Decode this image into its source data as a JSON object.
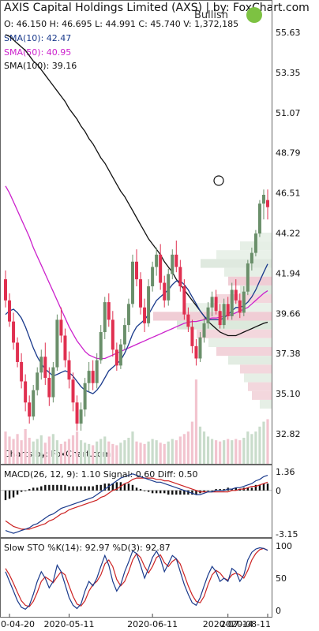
{
  "header": {
    "title": "AXIS Capital Holdings Limited (AXS) | by: FoxChart.com",
    "ohlc": "O: 46.150 H: 46.695 L: 44.991 C: 45.740 V: 1,372,185",
    "sentiment": "Bullish",
    "sentiment_color": "#7dc242"
  },
  "legend": {
    "sma10": "SMA(10): 42.47",
    "sma50": "SMA(50): 40.95",
    "sma100": "SMA(100): 39.16"
  },
  "credit": "Charts by: FoxChart.com",
  "colors": {
    "up": "#6a8f6a",
    "down": "#e03050",
    "sma10": "#1a3a8c",
    "sma50": "#cc22cc",
    "sma100": "#111111",
    "macd": "#1a3a8c",
    "signal": "#cc2222"
  },
  "chart_data": [
    {
      "type": "candlestick",
      "title": "AXIS Capital Holdings Limited (AXS) | by: FoxChart.com",
      "y_ticks": [
        "55.63",
        "53.35",
        "51.07",
        "48.79",
        "46.51",
        "44.22",
        "41.94",
        "39.66",
        "37.38",
        "35.10",
        "32.82"
      ],
      "ylim": [
        32.82,
        55.63
      ],
      "x_ticks": [
        "2020-04-20",
        "2020-05-11",
        "2020-06-11",
        "2020-07-14",
        "2020-08-11"
      ],
      "candles": [
        [
          41.6,
          42.1,
          40.0,
          40.4
        ],
        [
          40.4,
          40.8,
          38.9,
          39.2
        ],
        [
          39.2,
          39.7,
          37.6,
          38.0
        ],
        [
          38.0,
          38.3,
          36.6,
          36.9
        ],
        [
          36.9,
          37.4,
          35.4,
          35.8
        ],
        [
          35.8,
          36.2,
          34.1,
          34.6
        ],
        [
          34.6,
          35.0,
          33.4,
          33.8
        ],
        [
          33.8,
          35.6,
          33.6,
          35.3
        ],
        [
          35.3,
          36.6,
          35.0,
          36.3
        ],
        [
          36.3,
          37.6,
          35.9,
          37.2
        ],
        [
          37.2,
          38.0,
          35.6,
          36.0
        ],
        [
          36.0,
          36.6,
          34.4,
          34.9
        ],
        [
          34.9,
          36.9,
          34.6,
          36.6
        ],
        [
          36.6,
          39.6,
          36.4,
          39.3
        ],
        [
          39.3,
          40.0,
          38.0,
          38.4
        ],
        [
          38.4,
          38.8,
          36.6,
          37.0
        ],
        [
          37.0,
          37.5,
          35.4,
          35.9
        ],
        [
          35.9,
          36.3,
          34.1,
          34.6
        ],
        [
          34.6,
          35.0,
          33.0,
          33.4
        ],
        [
          33.4,
          34.6,
          33.0,
          34.2
        ],
        [
          34.2,
          36.0,
          33.8,
          35.7
        ],
        [
          35.7,
          36.9,
          35.2,
          36.4
        ],
        [
          36.4,
          37.0,
          35.3,
          35.7
        ],
        [
          35.7,
          37.4,
          35.4,
          37.0
        ],
        [
          37.0,
          39.0,
          36.8,
          38.6
        ],
        [
          38.6,
          40.6,
          38.2,
          40.3
        ],
        [
          40.3,
          40.8,
          38.9,
          39.3
        ],
        [
          39.3,
          39.8,
          37.2,
          37.6
        ],
        [
          37.6,
          38.0,
          36.4,
          36.7
        ],
        [
          36.7,
          38.2,
          36.5,
          37.9
        ],
        [
          37.9,
          39.4,
          37.6,
          39.0
        ],
        [
          39.0,
          40.5,
          38.6,
          40.2
        ],
        [
          40.2,
          43.0,
          40.0,
          42.6
        ],
        [
          42.6,
          43.3,
          41.2,
          41.6
        ],
        [
          41.6,
          42.0,
          39.6,
          40.0
        ],
        [
          40.0,
          40.5,
          38.6,
          39.1
        ],
        [
          39.1,
          41.6,
          38.9,
          41.2
        ],
        [
          41.2,
          42.6,
          40.9,
          42.3
        ],
        [
          42.3,
          43.4,
          41.8,
          43.0
        ],
        [
          43.0,
          43.6,
          41.0,
          41.4
        ],
        [
          41.4,
          41.8,
          40.0,
          40.4
        ],
        [
          40.4,
          42.2,
          40.1,
          41.9
        ],
        [
          41.9,
          43.3,
          41.6,
          43.0
        ],
        [
          43.0,
          43.8,
          42.0,
          42.3
        ],
        [
          42.3,
          42.7,
          40.9,
          41.2
        ],
        [
          41.2,
          41.6,
          39.3,
          39.6
        ],
        [
          39.6,
          40.0,
          38.6,
          38.9
        ],
        [
          38.9,
          39.3,
          37.4,
          37.8
        ],
        [
          37.8,
          38.2,
          36.7,
          37.1
        ],
        [
          37.1,
          38.6,
          36.9,
          38.3
        ],
        [
          38.3,
          39.4,
          38.0,
          39.1
        ],
        [
          39.1,
          40.3,
          38.8,
          40.0
        ],
        [
          40.0,
          40.9,
          39.5,
          40.6
        ],
        [
          40.6,
          41.0,
          39.6,
          39.8
        ],
        [
          39.8,
          40.2,
          38.8,
          39.0
        ],
        [
          39.0,
          40.5,
          38.8,
          40.2
        ],
        [
          40.2,
          40.6,
          39.3,
          39.5
        ],
        [
          39.5,
          41.4,
          39.3,
          41.0
        ],
        [
          41.0,
          41.6,
          40.2,
          40.4
        ],
        [
          40.4,
          40.8,
          39.4,
          39.7
        ],
        [
          39.7,
          41.2,
          39.5,
          40.9
        ],
        [
          40.9,
          42.7,
          40.7,
          42.5
        ],
        [
          42.5,
          43.4,
          42.1,
          43.1
        ],
        [
          43.1,
          44.4,
          42.9,
          44.2
        ],
        [
          44.2,
          46.1,
          44.0,
          45.9
        ],
        [
          45.9,
          46.7,
          45.0,
          46.4
        ],
        [
          46.1,
          46.7,
          45.0,
          45.7
        ]
      ],
      "sma10": [
        39.6,
        39.8,
        39.9,
        39.7,
        39.4,
        38.9,
        38.3,
        37.7,
        37.2,
        36.8,
        36.5,
        36.3,
        36.1,
        36.2,
        36.3,
        36.4,
        36.3,
        36.1,
        35.8,
        35.5,
        35.3,
        35.2,
        35.1,
        35.3,
        35.6,
        36.0,
        36.4,
        36.6,
        36.8,
        37.0,
        37.4,
        37.9,
        38.5,
        38.9,
        39.1,
        39.3,
        39.6,
        40.0,
        40.4,
        40.6,
        40.8,
        41.0,
        41.3,
        41.5,
        41.5,
        41.3,
        41.0,
        40.6,
        40.2,
        39.8,
        39.5,
        39.3,
        39.3,
        39.3,
        39.3,
        39.4,
        39.6,
        39.8,
        40.0,
        40.0,
        40.1,
        40.3,
        40.6,
        41.0,
        41.5,
        42.0,
        42.47
      ],
      "sma50": [
        46.9,
        46.5,
        46.0,
        45.5,
        45.0,
        44.5,
        44.0,
        43.4,
        42.9,
        42.4,
        41.9,
        41.4,
        40.9,
        40.4,
        39.9,
        39.4,
        38.9,
        38.5,
        38.1,
        37.8,
        37.5,
        37.3,
        37.2,
        37.1,
        37.1,
        37.1,
        37.2,
        37.3,
        37.4,
        37.5,
        37.6,
        37.7,
        37.8,
        37.9,
        38.0,
        38.1,
        38.2,
        38.3,
        38.4,
        38.5,
        38.6,
        38.7,
        38.8,
        38.9,
        39.0,
        39.1,
        39.15,
        39.2,
        39.2,
        39.25,
        39.3,
        39.35,
        39.4,
        39.4,
        39.45,
        39.5,
        39.55,
        39.6,
        39.7,
        39.8,
        39.9,
        40.0,
        40.2,
        40.4,
        40.6,
        40.8,
        40.95
      ],
      "sma100": [
        55.5,
        55.4,
        55.2,
        55.0,
        54.8,
        54.6,
        54.3,
        54.0,
        53.8,
        53.5,
        53.2,
        52.9,
        52.6,
        52.3,
        52.0,
        51.7,
        51.3,
        51.0,
        50.7,
        50.3,
        50.0,
        49.6,
        49.3,
        48.9,
        48.5,
        48.2,
        47.8,
        47.4,
        47.0,
        46.6,
        46.3,
        45.9,
        45.5,
        45.1,
        44.7,
        44.3,
        43.9,
        43.6,
        43.3,
        43.0,
        42.6,
        42.3,
        42.0,
        41.6,
        41.3,
        41.0,
        40.7,
        40.4,
        40.1,
        39.8,
        39.5,
        39.2,
        39.0,
        38.8,
        38.6,
        38.5,
        38.4,
        38.4,
        38.4,
        38.5,
        38.6,
        38.7,
        38.8,
        38.9,
        39.0,
        39.1,
        39.16
      ],
      "volume": [
        2.6,
        2.2,
        2.0,
        2.4,
        1.9,
        2.8,
        2.1,
        1.8,
        2.0,
        2.3,
        1.7,
        2.2,
        2.4,
        1.9,
        1.6,
        1.8,
        2.0,
        2.3,
        2.6,
        1.9,
        1.7,
        1.6,
        1.5,
        1.8,
        2.0,
        2.2,
        1.8,
        1.6,
        1.5,
        1.7,
        1.9,
        2.1,
        2.6,
        1.8,
        1.7,
        1.6,
        1.8,
        2.0,
        1.9,
        1.7,
        1.6,
        1.8,
        2.0,
        1.9,
        2.2,
        2.4,
        2.6,
        3.4,
        6.8,
        3.0,
        2.6,
        2.2,
        2.0,
        1.9,
        1.8,
        1.9,
        2.0,
        1.9,
        2.0,
        1.9,
        2.1,
        2.6,
        2.4,
        2.6,
        3.0,
        3.4,
        3.6
      ]
    },
    {
      "type": "line",
      "title": "MACD(26, 12, 9): 1.10 Signal: 0.60 Diff: 0.50",
      "y_ticks": [
        "1.36",
        "0",
        "-3.15"
      ],
      "ylim": [
        -3.15,
        1.36
      ],
      "macd": [
        -2.9,
        -3.0,
        -3.1,
        -3.0,
        -2.9,
        -2.8,
        -2.7,
        -2.5,
        -2.4,
        -2.2,
        -2.0,
        -1.8,
        -1.7,
        -1.5,
        -1.3,
        -1.2,
        -1.1,
        -1.0,
        -0.9,
        -0.8,
        -0.7,
        -0.6,
        -0.5,
        -0.3,
        -0.1,
        0.1,
        0.3,
        0.5,
        0.7,
        0.9,
        1.0,
        1.1,
        1.2,
        1.1,
        1.0,
        0.9,
        0.8,
        0.7,
        0.6,
        0.6,
        0.5,
        0.4,
        0.3,
        0.2,
        0.1,
        0.0,
        -0.1,
        -0.2,
        -0.3,
        -0.3,
        -0.2,
        -0.1,
        -0.1,
        0.0,
        0.0,
        0.0,
        0.1,
        0.1,
        0.2,
        0.2,
        0.3,
        0.4,
        0.5,
        0.7,
        0.8,
        1.0,
        1.1
      ],
      "signal": [
        -2.2,
        -2.4,
        -2.6,
        -2.7,
        -2.8,
        -2.8,
        -2.8,
        -2.7,
        -2.6,
        -2.5,
        -2.4,
        -2.2,
        -2.1,
        -1.9,
        -1.7,
        -1.6,
        -1.4,
        -1.3,
        -1.2,
        -1.1,
        -1.0,
        -0.9,
        -0.8,
        -0.7,
        -0.5,
        -0.4,
        -0.2,
        0.0,
        0.1,
        0.3,
        0.5,
        0.6,
        0.8,
        0.9,
        0.9,
        0.9,
        0.9,
        0.9,
        0.8,
        0.8,
        0.7,
        0.7,
        0.6,
        0.5,
        0.4,
        0.3,
        0.2,
        0.1,
        0.0,
        -0.1,
        -0.1,
        -0.1,
        -0.1,
        -0.1,
        -0.1,
        -0.1,
        -0.1,
        0.0,
        0.0,
        0.1,
        0.1,
        0.2,
        0.3,
        0.3,
        0.4,
        0.5,
        0.6
      ],
      "diff": [
        -0.7,
        -0.6,
        -0.5,
        -0.3,
        -0.1,
        0.0,
        0.1,
        0.2,
        0.2,
        0.3,
        0.4,
        0.4,
        0.4,
        0.4,
        0.4,
        0.4,
        0.3,
        0.3,
        0.3,
        0.3,
        0.3,
        0.3,
        0.3,
        0.4,
        0.4,
        0.5,
        0.5,
        0.5,
        0.6,
        0.6,
        0.5,
        0.5,
        0.4,
        0.2,
        0.1,
        0.0,
        -0.1,
        -0.2,
        -0.2,
        -0.2,
        -0.2,
        -0.3,
        -0.3,
        -0.3,
        -0.3,
        -0.3,
        -0.3,
        -0.3,
        -0.3,
        -0.2,
        -0.1,
        0.0,
        0.0,
        0.1,
        0.1,
        0.1,
        0.2,
        0.1,
        0.2,
        0.1,
        0.2,
        0.2,
        0.2,
        0.4,
        0.4,
        0.5,
        0.5
      ]
    },
    {
      "type": "line",
      "title": "Slow STO %K(14): 92.97 %D(3): 92.87",
      "y_ticks": [
        "100",
        "50",
        "0"
      ],
      "ylim": [
        0,
        100
      ],
      "k": [
        60,
        45,
        30,
        15,
        5,
        2,
        8,
        25,
        45,
        60,
        50,
        35,
        45,
        70,
        60,
        40,
        20,
        8,
        3,
        10,
        30,
        45,
        38,
        50,
        68,
        85,
        70,
        45,
        30,
        40,
        60,
        75,
        92,
        88,
        70,
        50,
        65,
        82,
        92,
        80,
        60,
        72,
        85,
        80,
        60,
        40,
        25,
        12,
        8,
        20,
        38,
        55,
        68,
        60,
        45,
        50,
        45,
        65,
        60,
        45,
        55,
        78,
        90,
        95,
        97,
        96,
        93
      ],
      "d": [
        65,
        55,
        42,
        28,
        15,
        8,
        6,
        14,
        28,
        45,
        52,
        48,
        43,
        52,
        60,
        55,
        38,
        22,
        10,
        7,
        15,
        30,
        40,
        45,
        55,
        72,
        78,
        68,
        48,
        38,
        45,
        60,
        78,
        88,
        82,
        68,
        58,
        68,
        82,
        86,
        74,
        68,
        76,
        80,
        72,
        55,
        38,
        24,
        14,
        12,
        22,
        40,
        55,
        62,
        58,
        50,
        47,
        55,
        58,
        55,
        50,
        62,
        78,
        88,
        94,
        96,
        93
      ]
    }
  ]
}
